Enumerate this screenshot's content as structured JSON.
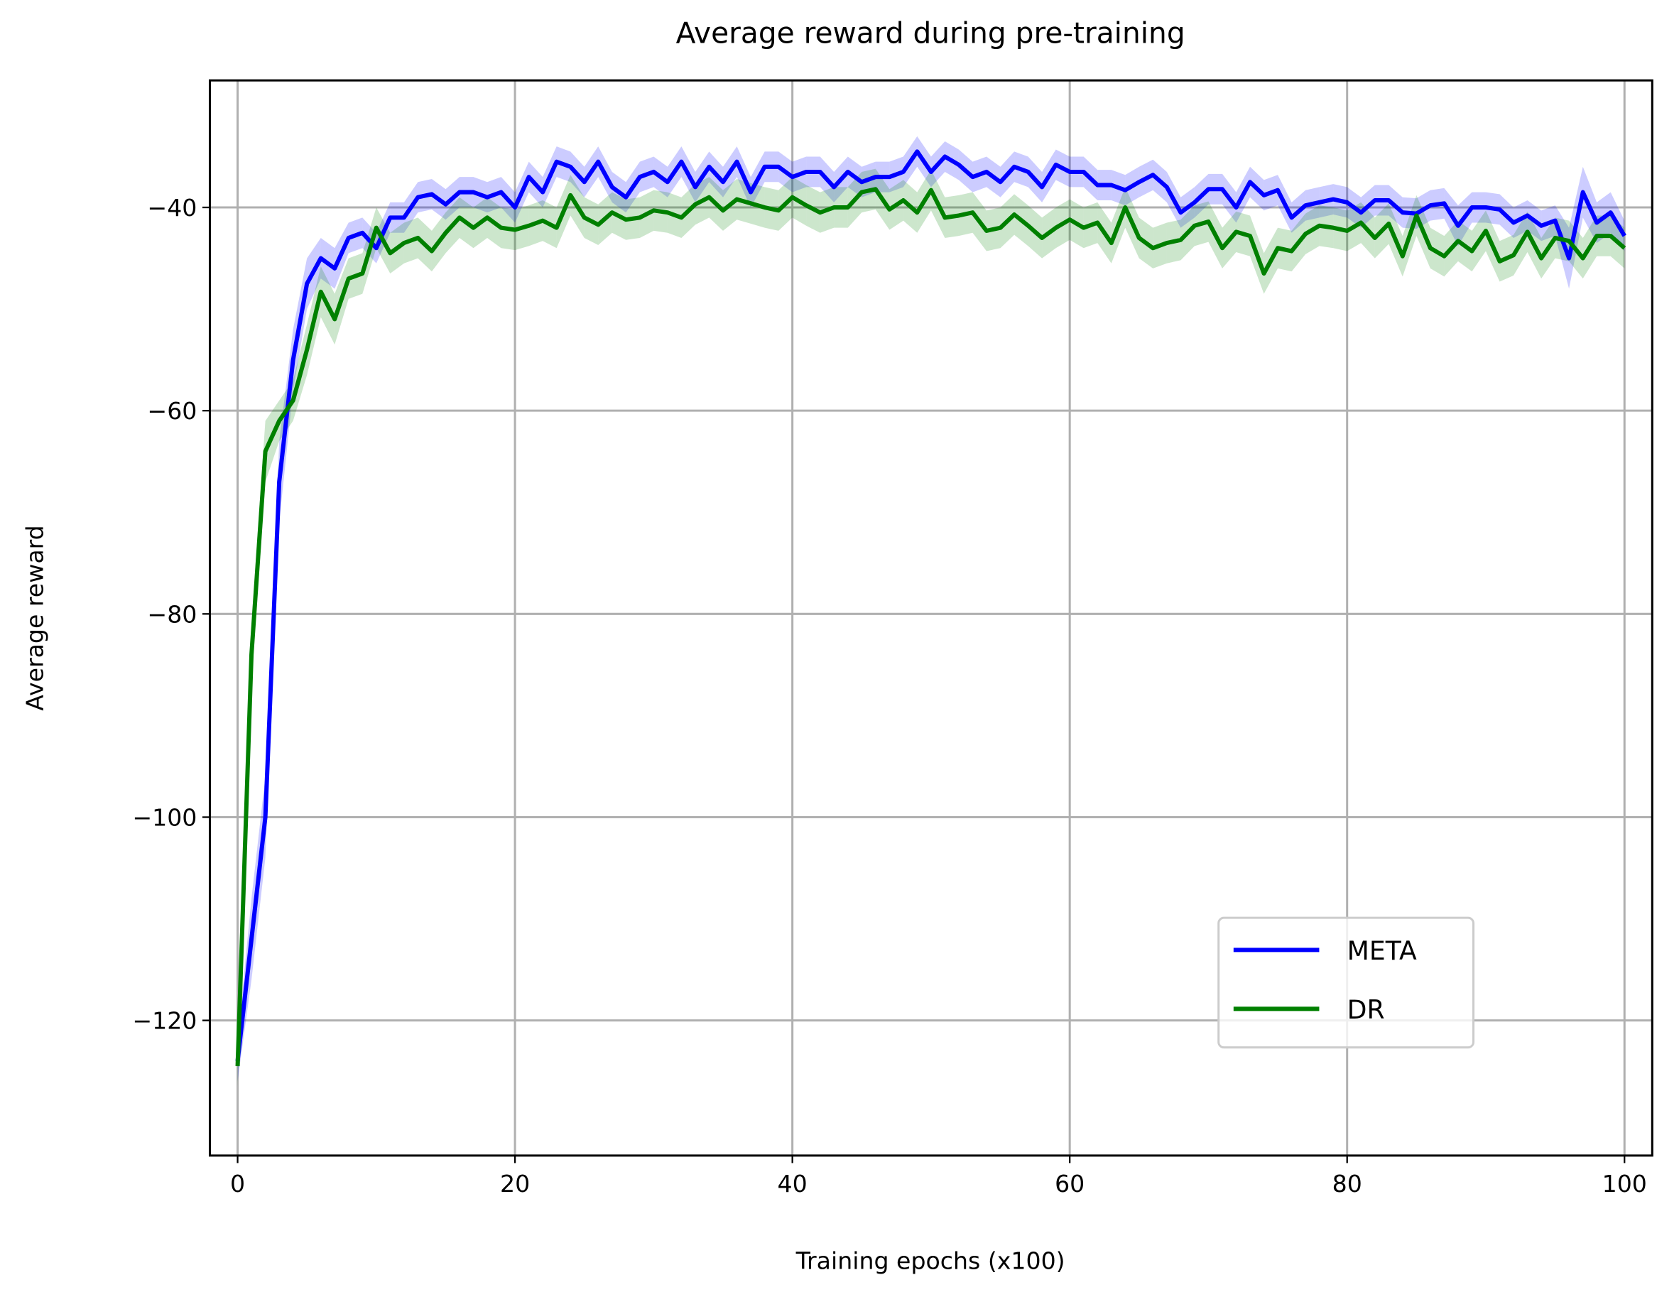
{
  "chart_data": {
    "type": "line",
    "title": "Average reward during pre-training",
    "xlabel": "Training epochs (x100)",
    "ylabel": "Average reward",
    "x": [
      0,
      1,
      2,
      3,
      4,
      5,
      6,
      7,
      8,
      9,
      10,
      11,
      12,
      13,
      14,
      15,
      16,
      17,
      18,
      19,
      20,
      21,
      22,
      23,
      24,
      25,
      26,
      27,
      28,
      29,
      30,
      31,
      32,
      33,
      34,
      35,
      36,
      37,
      38,
      39,
      40,
      41,
      42,
      43,
      44,
      45,
      46,
      47,
      48,
      49,
      50,
      51,
      52,
      53,
      54,
      55,
      56,
      57,
      58,
      59,
      60,
      61,
      62,
      63,
      64,
      65,
      66,
      67,
      68,
      69,
      70,
      71,
      72,
      73,
      74,
      75,
      76,
      77,
      78,
      79,
      80,
      81,
      82,
      83,
      84,
      85,
      86,
      87,
      88,
      89,
      90,
      91,
      92,
      93,
      94,
      95,
      96,
      97,
      98,
      99,
      100
    ],
    "series": [
      {
        "name": "META",
        "color": "#0000ff",
        "values": [
          -124,
          -112,
          -100,
          -67,
          -55,
          -47.5,
          -45,
          -46,
          -43,
          -42.5,
          -44,
          -41,
          -41,
          -39,
          -38.7,
          -39.7,
          -38.5,
          -38.5,
          -39,
          -38.5,
          -40,
          -37,
          -38.5,
          -35.5,
          -36,
          -37.5,
          -35.5,
          -38,
          -39,
          -37,
          -36.5,
          -37.5,
          -35.5,
          -38,
          -36,
          -37.5,
          -35.5,
          -38.5,
          -36,
          -36,
          -37,
          -36.5,
          -36.5,
          -38,
          -36.5,
          -37.5,
          -37,
          -37,
          -36.5,
          -34.5,
          -36.5,
          -35,
          -35.8,
          -37,
          -36.5,
          -37.5,
          -36,
          -36.5,
          -38,
          -35.8,
          -36.5,
          -36.5,
          -37.8,
          -37.8,
          -38.3,
          -37.5,
          -36.8,
          -38,
          -40.5,
          -39.5,
          -38.2,
          -38.2,
          -40,
          -37.5,
          -38.8,
          -38.3,
          -41,
          -39.8,
          -39.5,
          -39.2,
          -39.5,
          -40.5,
          -39.3,
          -39.3,
          -40.5,
          -40.6,
          -39.8,
          -39.6,
          -41.8,
          -40,
          -40,
          -40.2,
          -41.5,
          -40.8,
          -41.8,
          -41.3,
          -45,
          -38.5,
          -41.5,
          -40.5,
          -42.8
        ],
        "errors": [
          2,
          4,
          4,
          4,
          3,
          2.5,
          2,
          2,
          1.5,
          1.5,
          1.5,
          1.5,
          1.5,
          1.5,
          1.5,
          1.5,
          1.5,
          1.5,
          1.5,
          1.5,
          1.5,
          1.5,
          1.5,
          1.5,
          1.5,
          1.5,
          1.5,
          1.5,
          1.5,
          1.5,
          1.5,
          1.5,
          1.5,
          1.5,
          1.5,
          1.5,
          1.5,
          1.5,
          1.5,
          1.5,
          1.5,
          1.5,
          1.5,
          1.5,
          1.5,
          1.5,
          1.5,
          1.5,
          1.5,
          1.5,
          1.5,
          1.5,
          1.5,
          1.5,
          1.5,
          1.5,
          1.5,
          1.5,
          1.5,
          1.5,
          1.5,
          1.5,
          1.5,
          1.5,
          1.5,
          1.5,
          1.5,
          1.5,
          1.5,
          1.5,
          1.5,
          1.5,
          1.5,
          1.5,
          1.5,
          1.5,
          1.5,
          1.5,
          1.5,
          1.5,
          1.5,
          1.5,
          1.5,
          1.5,
          1.5,
          1.5,
          1.5,
          1.5,
          2,
          1.5,
          1.5,
          1.5,
          1.5,
          1.5,
          1.5,
          1.5,
          3,
          2.5,
          2,
          2,
          1.5
        ]
      },
      {
        "name": "DR",
        "color": "#008000",
        "values": [
          -124.5,
          -84,
          -64,
          -61,
          -59,
          -54,
          -48.3,
          -51,
          -47,
          -46.5,
          -42,
          -44.5,
          -43.5,
          -43,
          -44.3,
          -42.5,
          -41,
          -42,
          -41,
          -42,
          -42.2,
          -41.8,
          -41.3,
          -42,
          -38.8,
          -41,
          -41.7,
          -40.5,
          -41.2,
          -41,
          -40.3,
          -40.5,
          -41,
          -39.7,
          -39,
          -40.3,
          -39.2,
          -39.6,
          -40,
          -40.3,
          -39,
          -39.8,
          -40.5,
          -40,
          -40,
          -38.5,
          -38.2,
          -40.2,
          -39.3,
          -40.5,
          -38.3,
          -41,
          -40.8,
          -40.5,
          -42.3,
          -42,
          -40.7,
          -41.8,
          -43,
          -42,
          -41.2,
          -42,
          -41.5,
          -43.5,
          -40,
          -43,
          -44,
          -43.5,
          -43.2,
          -41.8,
          -41.4,
          -44,
          -42.4,
          -42.8,
          -46.5,
          -44,
          -44.3,
          -42.6,
          -41.8,
          -42,
          -42.3,
          -41.5,
          -43,
          -41.6,
          -44.8,
          -40.8,
          -44,
          -44.8,
          -43.3,
          -44.3,
          -42.3,
          -45.3,
          -44.7,
          -42.4,
          -45,
          -43,
          -43.3,
          -45,
          -42.8,
          -42.8,
          -44
        ],
        "errors": [
          2,
          3,
          3,
          2,
          2,
          2.5,
          2.5,
          2.5,
          2,
          2,
          2,
          2,
          2,
          2,
          2,
          2,
          2,
          2,
          2,
          2,
          2,
          2,
          2,
          2,
          2,
          2,
          2,
          2,
          2,
          2,
          2,
          2,
          2,
          2,
          2,
          2,
          2,
          2,
          2,
          2,
          2,
          2,
          2,
          2,
          2,
          2,
          2,
          2,
          2,
          2,
          2,
          2,
          2,
          2,
          2,
          2,
          2,
          2,
          2,
          2,
          2,
          2,
          2,
          2,
          2,
          2,
          2,
          2,
          2,
          2,
          2,
          2,
          2,
          2,
          2,
          2,
          2,
          2,
          2,
          2,
          2,
          2,
          2,
          2,
          2,
          2,
          2,
          2,
          2,
          2,
          2,
          2,
          2,
          2,
          2,
          2,
          2,
          2,
          2,
          2,
          2
        ]
      }
    ],
    "xlim": [
      -2,
      102
    ],
    "ylim": [
      -133.3,
      -27.5
    ],
    "xticks": [
      0,
      20,
      40,
      60,
      80,
      100
    ],
    "yticks": [
      {
        "value": -120,
        "label": "−120"
      },
      {
        "value": -100,
        "label": "−100"
      },
      {
        "value": -80,
        "label": "−80"
      },
      {
        "value": -60,
        "label": "−60"
      },
      {
        "value": -40,
        "label": "−40"
      }
    ],
    "grid": true,
    "legend": "lower right"
  }
}
